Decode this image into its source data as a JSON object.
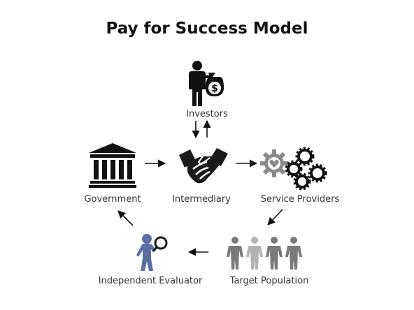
{
  "title": "Pay for Success Model",
  "nodes": {
    "investors": "Investors",
    "government": "Government",
    "intermediary": "Intermediary",
    "service_providers": "Service Providers",
    "independent_evaluator": "Independent Evaluator",
    "target_population": "Target Population"
  },
  "icons": {
    "investors": "investor-moneybag-icon",
    "government": "government-building-icon",
    "intermediary": "handshake-icon",
    "service_providers": "gears-heart-icon",
    "independent_evaluator": "evaluator-magnifier-icon",
    "target_population": "people-group-icon"
  },
  "colors": {
    "evaluator_blue": "#5b6fa3",
    "population_gray": "#7a7a7a",
    "population_light": "#b3b3b3",
    "gear_accent": "#8a8a8a"
  }
}
